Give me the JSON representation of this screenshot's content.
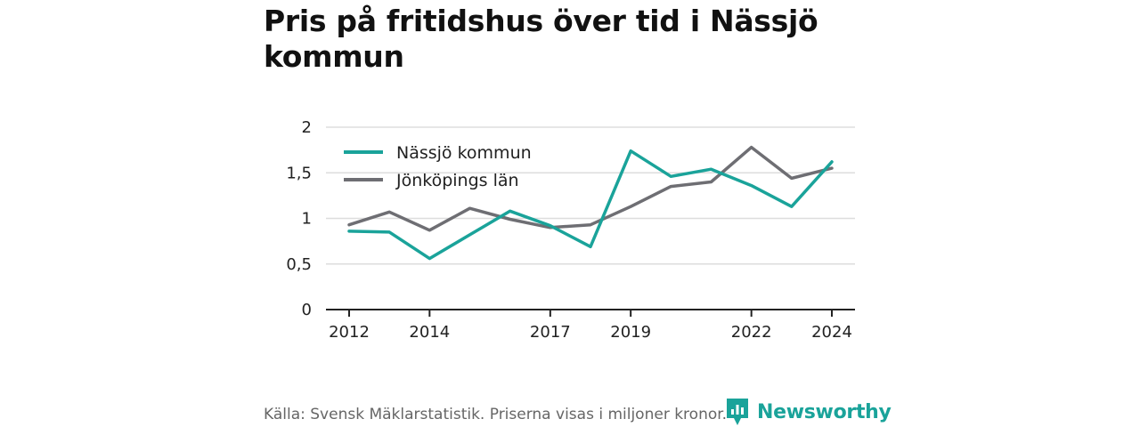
{
  "title": "Pris på fritidshus över tid i Nässjö kommun",
  "source": "Källa: Svensk Mäklarstatistik. Priserna visas i miljoner kronor.",
  "brand": {
    "name": "Newsworthy",
    "icon": "newsworthy-logo-icon",
    "color": "#1aa39a"
  },
  "chart_data": {
    "type": "line",
    "x": [
      2012,
      2013,
      2014,
      2015,
      2016,
      2017,
      2018,
      2019,
      2020,
      2021,
      2022,
      2023,
      2024
    ],
    "xticks": [
      2012,
      2014,
      2017,
      2019,
      2022,
      2024
    ],
    "yticks": [
      0,
      0.5,
      1,
      1.5,
      2
    ],
    "ytick_labels": [
      "0",
      "0,5",
      "1",
      "1,5",
      "2"
    ],
    "ylim": [
      0,
      2
    ],
    "grid": true,
    "legend_position": "top-left",
    "series": [
      {
        "name": "Nässjö kommun",
        "color": "#1aa39a",
        "values": [
          0.86,
          0.85,
          0.56,
          0.82,
          1.08,
          0.92,
          0.69,
          1.74,
          1.46,
          1.54,
          1.36,
          1.13,
          1.62
        ]
      },
      {
        "name": "Jönköpings län",
        "color": "#6e6e73",
        "values": [
          0.93,
          1.07,
          0.87,
          1.11,
          0.99,
          0.9,
          0.93,
          1.13,
          1.35,
          1.4,
          1.78,
          1.44,
          1.55
        ]
      }
    ]
  }
}
